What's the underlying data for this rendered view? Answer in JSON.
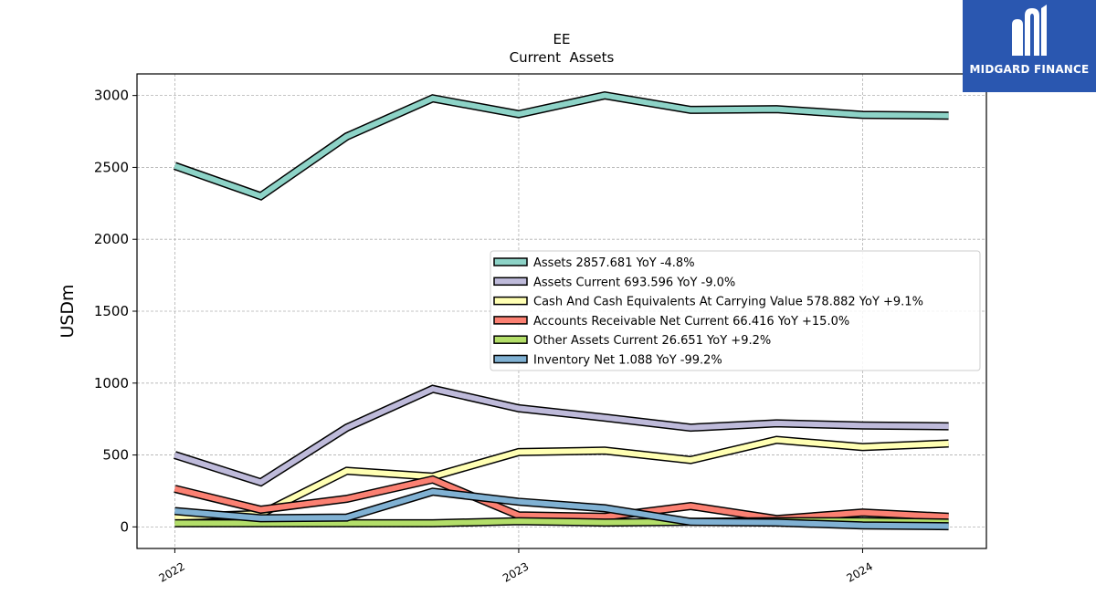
{
  "brand": {
    "name": "MIDGARD FINANCE",
    "bg": "#2a57b0"
  },
  "chart_data": {
    "type": "line",
    "title": "EE",
    "subtitle": "Current  Assets",
    "ylabel": "USDm",
    "xlabel": "",
    "ylim": [
      -150,
      3150
    ],
    "yticks": [
      0,
      500,
      1000,
      1500,
      2000,
      2500,
      3000
    ],
    "xlim": [
      2021.89,
      2024.36
    ],
    "xticks": [
      {
        "value": 2022.0,
        "label": "2022"
      },
      {
        "value": 2023.0,
        "label": "2023"
      },
      {
        "value": 2024.0,
        "label": "2024"
      }
    ],
    "grid": true,
    "legend_position": "center-right",
    "x": [
      2022.0,
      2022.25,
      2022.5,
      2022.75,
      2023.0,
      2023.25,
      2023.5,
      2023.75,
      2024.0,
      2024.25
    ],
    "series": [
      {
        "name": "Assets",
        "legend": "Assets  2857.681 YoY -4.8%",
        "color": "#8dd3c7",
        "values": [
          2510,
          2300,
          2715,
          2980,
          2870,
          3000,
          2900,
          2905,
          2865,
          2860
        ]
      },
      {
        "name": "Assets Current",
        "legend": "Assets Current  693.596 YoY -9.0%",
        "color": "#bebada",
        "values": [
          500,
          310,
          690,
          960,
          825,
          760,
          690,
          720,
          705,
          700
        ]
      },
      {
        "name": "Cash And Cash Equivalents At Carrying Value",
        "legend": "Cash And Cash Equivalents At Carrying Value  578.882 YoY +9.1%",
        "color": "#ffffb3",
        "values": [
          70,
          90,
          390,
          350,
          520,
          530,
          465,
          605,
          555,
          580
        ]
      },
      {
        "name": "Accounts Receivable Net Current",
        "legend": "Accounts Receivable Net Current  66.416 YoY +15.0%",
        "color": "#fb8072",
        "values": [
          265,
          120,
          195,
          330,
          80,
          70,
          145,
          55,
          100,
          70
        ]
      },
      {
        "name": "Other Assets Current",
        "legend": "Other Assets Current  26.651 YoY +9.2%",
        "color": "#b3de69",
        "values": [
          25,
          25,
          25,
          25,
          40,
          30,
          35,
          40,
          40,
          30
        ]
      },
      {
        "name": "Inventory Net",
        "legend": "Inventory Net  1.088 YoY -99.2%",
        "color": "#80b1d3",
        "values": [
          110,
          60,
          65,
          245,
          175,
          130,
          35,
          30,
          10,
          5
        ]
      }
    ]
  }
}
